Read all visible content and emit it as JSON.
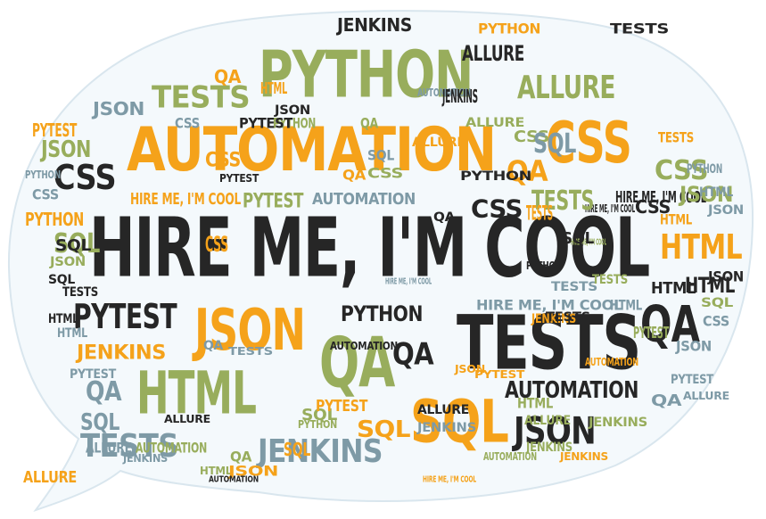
{
  "colors": {
    "black": "#262626",
    "orange": "#f5a21a",
    "green": "#98ad5c",
    "slate": "#7e9aa6",
    "bubble_fill": "#f4f9fc",
    "bubble_stroke": "#d9e6ee"
  },
  "headline": "HIRE ME, I'M COOL",
  "words": [
    {
      "t": "HIRE ME, I'M COOL",
      "c": "black"
    },
    {
      "t": "AUTOMATION",
      "c": "orange"
    },
    {
      "t": "PYTHON",
      "c": "green"
    },
    {
      "t": "JSON",
      "c": "orange"
    },
    {
      "t": "TESTS",
      "c": "black"
    },
    {
      "t": "QA",
      "c": "black"
    },
    {
      "t": "QA",
      "c": "green"
    },
    {
      "t": "HTML",
      "c": "green"
    },
    {
      "t": "SQL",
      "c": "orange"
    },
    {
      "t": "CSS",
      "c": "orange"
    },
    {
      "t": "PYTEST",
      "c": "black"
    },
    {
      "t": "JSON",
      "c": "black"
    },
    {
      "t": "AUTOMATION",
      "c": "black"
    },
    {
      "t": "JENKINS",
      "c": "slate"
    },
    {
      "t": "TESTS",
      "c": "slate"
    },
    {
      "t": "ALLURE",
      "c": "green"
    },
    {
      "t": "TESTS",
      "c": "green"
    },
    {
      "t": "HTML",
      "c": "orange"
    },
    {
      "t": "QA",
      "c": "orange"
    },
    {
      "t": "CSS",
      "c": "black"
    },
    {
      "t": "PYTHON",
      "c": "black"
    },
    {
      "t": "HIRE ME, I'M COOL",
      "c": "slate"
    },
    {
      "t": "HIRE ME, I'M COOL",
      "c": "black"
    },
    {
      "t": "AUTOMATION",
      "c": "slate"
    },
    {
      "t": "PYTEST",
      "c": "green"
    },
    {
      "t": "HIRE ME, I'M COOL",
      "c": "orange"
    },
    {
      "t": "HTML",
      "c": "black"
    },
    {
      "t": "CSS",
      "c": "green"
    },
    {
      "t": "SQL",
      "c": "green"
    },
    {
      "t": "ALLURE",
      "c": "black"
    },
    {
      "t": "JENKINS",
      "c": "black"
    },
    {
      "t": "PYTEST",
      "c": "orange"
    },
    {
      "t": "JSON",
      "c": "slate"
    },
    {
      "t": "PYTHON",
      "c": "orange"
    },
    {
      "t": "JENKINS",
      "c": "orange"
    },
    {
      "t": "TESTS",
      "c": "orange"
    },
    {
      "t": "SQL",
      "c": "slate"
    },
    {
      "t": "AUTOMATION",
      "c": "green"
    },
    {
      "t": "QA",
      "c": "slate"
    },
    {
      "t": "JSON",
      "c": "green"
    },
    {
      "t": "PYTEST",
      "c": "slate"
    },
    {
      "t": "ALLURE",
      "c": "orange"
    },
    {
      "t": "CSS",
      "c": "slate"
    },
    {
      "t": "HTML",
      "c": "slate"
    },
    {
      "t": "SQL",
      "c": "black"
    },
    {
      "t": "PYTHON",
      "c": "slate"
    },
    {
      "t": "JENKINS",
      "c": "green"
    },
    {
      "t": "ALLURE",
      "c": "slate"
    },
    {
      "t": "HIRE ME, I'M COOL",
      "c": "green"
    },
    {
      "t": "QA",
      "c": "black"
    },
    {
      "t": "TESTS",
      "c": "black"
    },
    {
      "t": "HTML",
      "c": "orange"
    },
    {
      "t": "CSS",
      "c": "orange"
    },
    {
      "t": "SQL",
      "c": "orange"
    },
    {
      "t": "JSON",
      "c": "black"
    },
    {
      "t": "PYTHON",
      "c": "green"
    },
    {
      "t": "PYTEST",
      "c": "black"
    },
    {
      "t": "ALLURE",
      "c": "black"
    },
    {
      "t": "JENKINS",
      "c": "slate"
    },
    {
      "t": "AUTOMATION",
      "c": "black"
    },
    {
      "t": "QA",
      "c": "green"
    },
    {
      "t": "TESTS",
      "c": "slate"
    },
    {
      "t": "HTML",
      "c": "green"
    },
    {
      "t": "CSS",
      "c": "black"
    },
    {
      "t": "SQL",
      "c": "green"
    },
    {
      "t": "JSON",
      "c": "orange"
    },
    {
      "t": "PYTHON",
      "c": "black"
    },
    {
      "t": "PYTEST",
      "c": "orange"
    },
    {
      "t": "ALLURE",
      "c": "green"
    },
    {
      "t": "JENKINS",
      "c": "orange"
    },
    {
      "t": "AUTOMATION",
      "c": "slate"
    },
    {
      "t": "HIRE ME, I'M COOL",
      "c": "black"
    },
    {
      "t": "QA",
      "c": "orange"
    },
    {
      "t": "TESTS",
      "c": "green"
    },
    {
      "t": "HTML",
      "c": "slate"
    },
    {
      "t": "CSS",
      "c": "green"
    },
    {
      "t": "SQL",
      "c": "slate"
    },
    {
      "t": "JSON",
      "c": "green"
    },
    {
      "t": "PYTHON",
      "c": "orange"
    },
    {
      "t": "PYTEST",
      "c": "green"
    },
    {
      "t": "ALLURE",
      "c": "orange"
    },
    {
      "t": "JENKINS",
      "c": "black"
    },
    {
      "t": "AUTOMATION",
      "c": "orange"
    },
    {
      "t": "QA",
      "c": "slate"
    },
    {
      "t": "TESTS",
      "c": "black"
    },
    {
      "t": "HTML",
      "c": "black"
    },
    {
      "t": "CSS",
      "c": "slate"
    },
    {
      "t": "SQL",
      "c": "black"
    },
    {
      "t": "JSON",
      "c": "slate"
    },
    {
      "t": "PYTHON",
      "c": "slate"
    },
    {
      "t": "PYTEST",
      "c": "slate"
    },
    {
      "t": "ALLURE",
      "c": "slate"
    },
    {
      "t": "JENKINS",
      "c": "green"
    },
    {
      "t": "AUTOMATION",
      "c": "green"
    },
    {
      "t": "HIRE ME, I'M COOL",
      "c": "slate"
    },
    {
      "t": "QA",
      "c": "black"
    },
    {
      "t": "TESTS",
      "c": "orange"
    },
    {
      "t": "HTML",
      "c": "orange"
    },
    {
      "t": "CSS",
      "c": "black"
    },
    {
      "t": "SQL",
      "c": "green"
    },
    {
      "t": "JSON",
      "c": "black"
    },
    {
      "t": "PYTHON",
      "c": "black"
    },
    {
      "t": "PYTEST",
      "c": "black"
    },
    {
      "t": "ALLURE",
      "c": "black"
    },
    {
      "t": "JENKINS",
      "c": "slate"
    },
    {
      "t": "QA",
      "c": "green"
    },
    {
      "t": "CSS",
      "c": "orange"
    },
    {
      "t": "SQL",
      "c": "orange"
    },
    {
      "t": "HTML",
      "c": "green"
    },
    {
      "t": "JSON",
      "c": "orange"
    },
    {
      "t": "TESTS",
      "c": "slate"
    },
    {
      "t": "PYTHON",
      "c": "green"
    },
    {
      "t": "PYTEST",
      "c": "orange"
    },
    {
      "t": "AUTOMATION",
      "c": "black"
    },
    {
      "t": "HIRE ME, I'M COOL",
      "c": "orange"
    },
    {
      "t": "QA",
      "c": "orange"
    },
    {
      "t": "CSS",
      "c": "green"
    },
    {
      "t": "SQL",
      "c": "slate"
    },
    {
      "t": "HTML",
      "c": "slate"
    },
    {
      "t": "JSON",
      "c": "slate"
    },
    {
      "t": "TESTS",
      "c": "green"
    },
    {
      "t": "ALLURE",
      "c": "green"
    },
    {
      "t": "JENKINS",
      "c": "orange"
    },
    {
      "t": "QA",
      "c": "slate"
    },
    {
      "t": "CSS",
      "c": "slate"
    },
    {
      "t": "SQL",
      "c": "black"
    },
    {
      "t": "HTML",
      "c": "black"
    },
    {
      "t": "JSON",
      "c": "green"
    },
    {
      "t": "TESTS",
      "c": "black"
    }
  ]
}
